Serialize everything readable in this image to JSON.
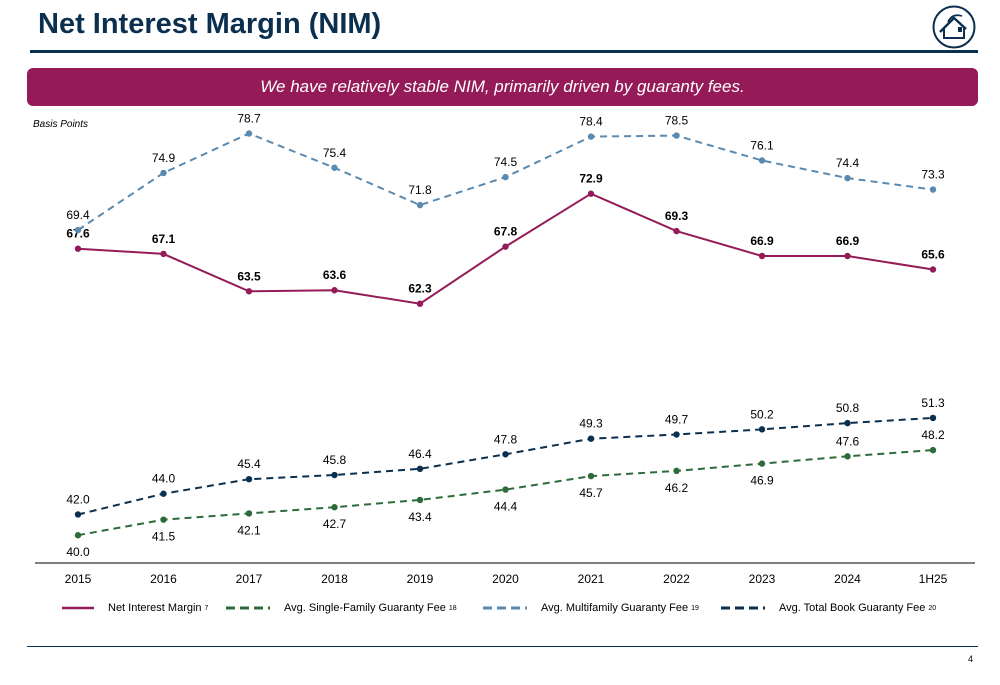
{
  "header": {
    "title": "Net Interest Margin (NIM)",
    "banner_text": "We have relatively stable NIM, primarily driven by guaranty fees.",
    "units_label": "Basis Points"
  },
  "logo": {
    "icon": "house-logo-icon"
  },
  "colors": {
    "title": "#0b2f4f",
    "banner": "#941b58",
    "nim": "#941b58",
    "single_family": "#2e6b3a",
    "multifamily": "#5a8ab0",
    "total_book": "#0b2f4f"
  },
  "chart_data": {
    "type": "line",
    "categories": [
      "2015",
      "2016",
      "2017",
      "2018",
      "2019",
      "2020",
      "2021",
      "2022",
      "2023",
      "2024",
      "1H25"
    ],
    "ylabel": "Basis Points",
    "ylim": [
      38,
      80
    ],
    "grid": false,
    "legend_position": "bottom",
    "series": [
      {
        "name": "Net Interest Margin",
        "footnote": "7",
        "key": "nim",
        "style": "solid",
        "bold_labels": true,
        "values": [
          67.6,
          67.1,
          63.5,
          63.6,
          62.3,
          67.8,
          72.9,
          69.3,
          66.9,
          66.9,
          65.6
        ]
      },
      {
        "name": "Avg. Single-Family Guaranty Fee",
        "footnote": "18",
        "key": "single_family",
        "style": "dashed",
        "bold_labels": false,
        "values": [
          40.0,
          41.5,
          42.1,
          42.7,
          43.4,
          44.4,
          45.7,
          46.2,
          46.9,
          47.6,
          48.2
        ]
      },
      {
        "name": "Avg. Multifamily Guaranty Fee",
        "footnote": "19",
        "key": "multifamily",
        "style": "dashed",
        "bold_labels": false,
        "values": [
          69.4,
          74.9,
          78.7,
          75.4,
          71.8,
          74.5,
          78.4,
          78.5,
          76.1,
          74.4,
          73.3
        ]
      },
      {
        "name": "Avg. Total Book Guaranty Fee",
        "footnote": "20",
        "key": "total_book",
        "style": "dashed",
        "bold_labels": false,
        "values": [
          42.0,
          44.0,
          45.4,
          45.8,
          46.4,
          47.8,
          49.3,
          49.7,
          50.2,
          50.8,
          51.3
        ]
      }
    ]
  },
  "legend": [
    {
      "label": "Net Interest Margin",
      "sup": "7"
    },
    {
      "label": "Avg. Single-Family Guaranty Fee",
      "sup": "18"
    },
    {
      "label": "Avg. Multifamily Guaranty Fee",
      "sup": "19"
    },
    {
      "label": "Avg. Total Book Guaranty Fee",
      "sup": "20"
    }
  ],
  "footer": {
    "page_number": "4"
  }
}
